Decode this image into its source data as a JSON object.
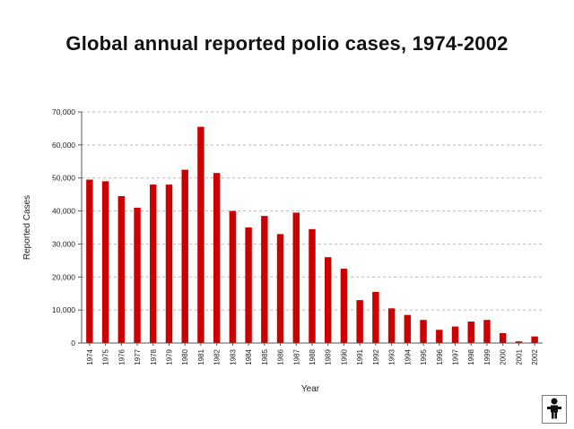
{
  "chart_data": {
    "type": "bar",
    "title": "Global annual reported polio cases, 1974-2002",
    "xlabel": "Year",
    "ylabel": "Reported Cases",
    "ylim": [
      0,
      70000
    ],
    "yticks": [
      0,
      10000,
      20000,
      30000,
      40000,
      50000,
      60000,
      70000
    ],
    "ytick_labels": [
      "0",
      "10,000",
      "20,000",
      "30,000",
      "40,000",
      "50,000",
      "60,000",
      "70,000"
    ],
    "grid": true,
    "bar_color": "#cc0000",
    "categories": [
      "1974",
      "1975",
      "1976",
      "1977",
      "1978",
      "1979",
      "1980",
      "1981",
      "1982",
      "1983",
      "1984",
      "1985",
      "1986",
      "1987",
      "1988",
      "1989",
      "1990",
      "1991",
      "1992",
      "1993",
      "1994",
      "1995",
      "1996",
      "1997",
      "1998",
      "1999",
      "2000",
      "2001",
      "2002"
    ],
    "values": [
      49500,
      49000,
      44500,
      41000,
      48000,
      48000,
      52500,
      65500,
      51500,
      40000,
      35000,
      38500,
      33000,
      39500,
      34500,
      26000,
      22500,
      13000,
      15500,
      10500,
      8500,
      7000,
      4000,
      5000,
      6500,
      7000,
      3000,
      500,
      2000
    ]
  },
  "logo": {
    "icon": "person-pictogram-icon"
  }
}
